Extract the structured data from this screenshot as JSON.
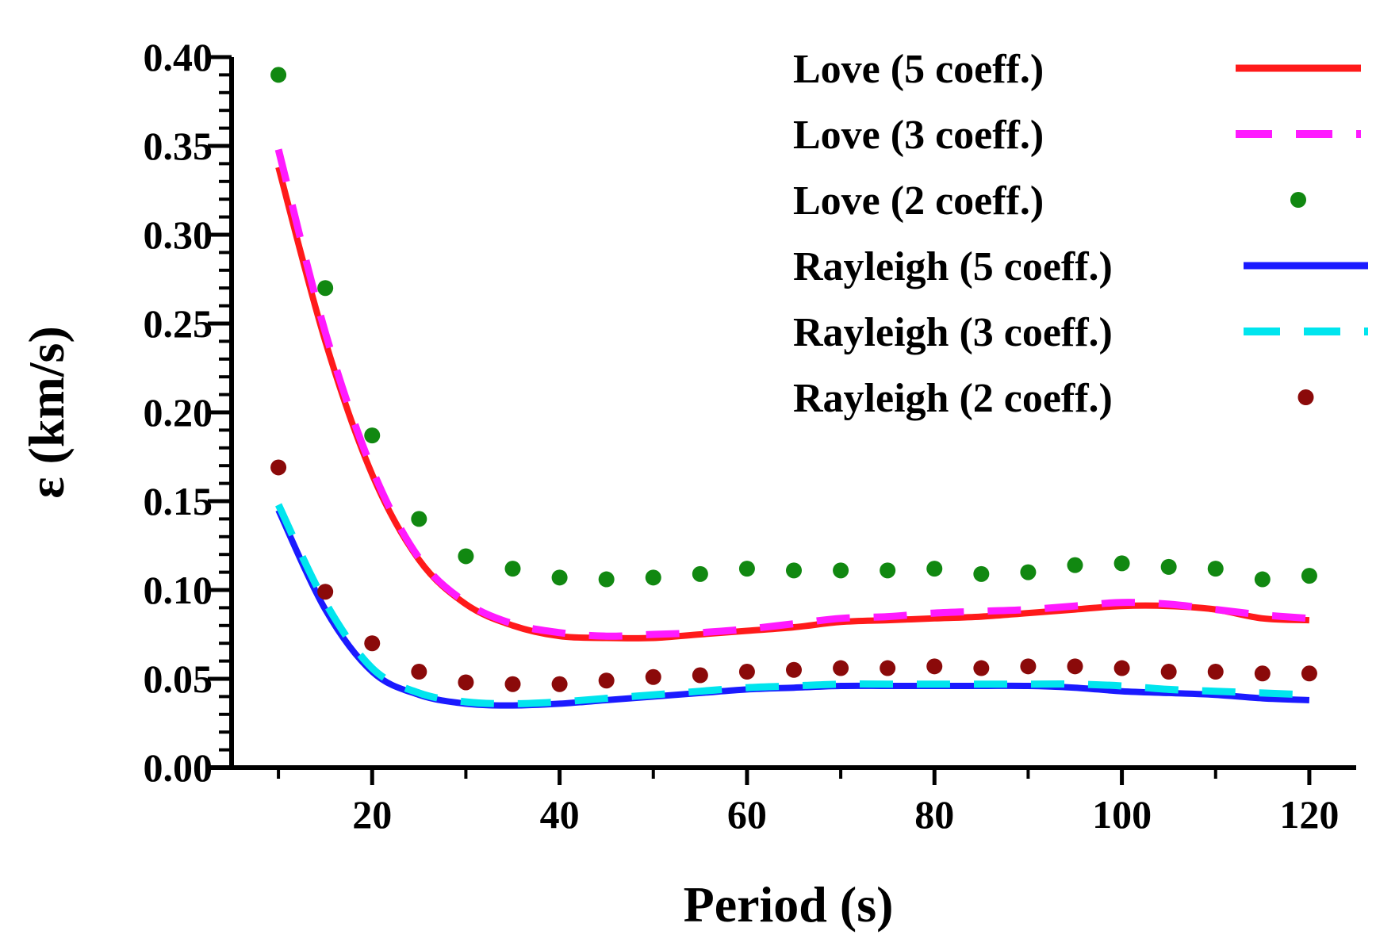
{
  "chart_data": {
    "type": "line",
    "title": "",
    "xlabel": "Period (s)",
    "ylabel": "ε (km/s)",
    "xlim": [
      5,
      125
    ],
    "ylim": [
      0,
      0.4
    ],
    "x_ticks": [
      20,
      40,
      60,
      80,
      100,
      120
    ],
    "x_tick_labels": [
      "20",
      "40",
      "60",
      "80",
      "100",
      "120"
    ],
    "y_ticks": [
      0,
      0.05,
      0.1,
      0.15,
      0.2,
      0.25,
      0.3,
      0.35,
      0.4
    ],
    "y_tick_labels": [
      "0.00",
      "0.05",
      "0.10",
      "0.15",
      "0.20",
      "0.25",
      "0.30",
      "0.35",
      "0.40"
    ],
    "legend_position": "top-right",
    "grid": false,
    "x": [
      10,
      15,
      20,
      25,
      30,
      35,
      40,
      45,
      50,
      55,
      60,
      65,
      70,
      75,
      80,
      85,
      90,
      95,
      100,
      105,
      110,
      115,
      120
    ],
    "series": [
      {
        "name": "Love (5 coeff.)",
        "style": "solid",
        "color": "#ff1a1a",
        "values": [
          0.338,
          0.24,
          0.165,
          0.117,
          0.092,
          0.08,
          0.074,
          0.073,
          0.073,
          0.075,
          0.077,
          0.079,
          0.082,
          0.083,
          0.084,
          0.085,
          0.087,
          0.089,
          0.091,
          0.091,
          0.089,
          0.084,
          0.083
        ]
      },
      {
        "name": "Love (3 coeff.)",
        "style": "dashed",
        "color": "#ff1aff",
        "values": [
          0.348,
          0.245,
          0.168,
          0.118,
          0.093,
          0.081,
          0.076,
          0.074,
          0.075,
          0.076,
          0.078,
          0.081,
          0.084,
          0.085,
          0.087,
          0.088,
          0.089,
          0.091,
          0.093,
          0.092,
          0.089,
          0.086,
          0.084
        ]
      },
      {
        "name": "Love (2 coeff.)",
        "style": "dots",
        "color": "#118811",
        "values": [
          0.39,
          0.27,
          0.187,
          0.14,
          0.119,
          0.112,
          0.107,
          0.106,
          0.107,
          0.109,
          0.112,
          0.111,
          0.111,
          0.111,
          0.112,
          0.109,
          0.11,
          0.114,
          0.115,
          0.113,
          0.112,
          0.106,
          0.108
        ]
      },
      {
        "name": "Rayleigh (5 coeff.)",
        "style": "solid",
        "color": "#1a1aff",
        "values": [
          0.145,
          0.089,
          0.054,
          0.041,
          0.036,
          0.035,
          0.036,
          0.038,
          0.04,
          0.042,
          0.044,
          0.045,
          0.046,
          0.046,
          0.046,
          0.046,
          0.046,
          0.045,
          0.043,
          0.042,
          0.041,
          0.039,
          0.038
        ]
      },
      {
        "name": "Rayleigh (3 coeff.)",
        "style": "dashed",
        "color": "#00e5ee",
        "values": [
          0.148,
          0.093,
          0.056,
          0.042,
          0.037,
          0.036,
          0.037,
          0.039,
          0.041,
          0.043,
          0.045,
          0.046,
          0.047,
          0.047,
          0.047,
          0.047,
          0.047,
          0.047,
          0.046,
          0.044,
          0.043,
          0.042,
          0.041
        ]
      },
      {
        "name": "Rayleigh (2 coeff.)",
        "style": "dots",
        "color": "#8b0a0a",
        "values": [
          0.169,
          0.099,
          0.07,
          0.054,
          0.048,
          0.047,
          0.047,
          0.049,
          0.051,
          0.052,
          0.054,
          0.055,
          0.056,
          0.056,
          0.057,
          0.056,
          0.057,
          0.057,
          0.056,
          0.054,
          0.054,
          0.053,
          0.053
        ]
      }
    ]
  }
}
